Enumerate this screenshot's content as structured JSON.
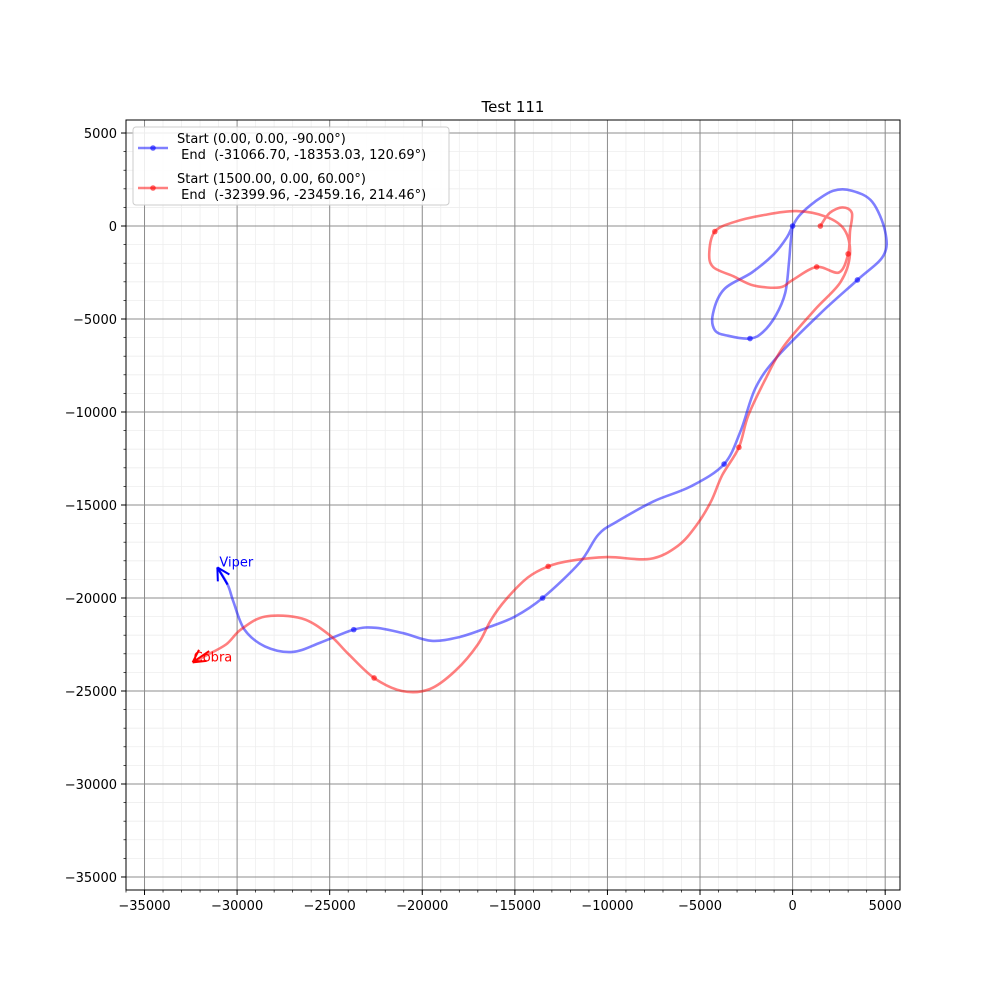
{
  "chart_data": {
    "type": "line",
    "title": "Test 111",
    "xlabel": "",
    "ylabel": "",
    "xlim": [
      -36000,
      5800
    ],
    "ylim": [
      -35700,
      5700
    ],
    "x_ticks": [
      -35000,
      -30000,
      -25000,
      -20000,
      -15000,
      -10000,
      -5000,
      0,
      5000
    ],
    "y_ticks": [
      -35000,
      -30000,
      -25000,
      -20000,
      -15000,
      -10000,
      -5000,
      0,
      5000
    ],
    "x_tick_labels": [
      "−35000",
      "−30000",
      "−25000",
      "−20000",
      "−15000",
      "−10000",
      "−5000",
      "0",
      "5000"
    ],
    "y_tick_labels": [
      "−35000",
      "−30000",
      "−25000",
      "−20000",
      "−15000",
      "−10000",
      "−5000",
      "0",
      "5000"
    ],
    "grid": true,
    "minor_grid": true,
    "minor_step": 1000,
    "legend_position": "top-left",
    "series": [
      {
        "legend": [
          "Start (0.00, 0.00, -90.00°)",
          " End  (-31066.70, -18353.03, 120.69°)"
        ],
        "color": "#0000ff",
        "annotation": "Viper",
        "end_heading_deg": 120.69,
        "points": [
          [
            0,
            0
          ],
          [
            -100,
            -800
          ],
          [
            -200,
            -2000
          ],
          [
            -400,
            -3600
          ],
          [
            -900,
            -4800
          ],
          [
            -1600,
            -5700
          ],
          [
            -2300,
            -6050
          ],
          [
            -3500,
            -5900
          ],
          [
            -4200,
            -5600
          ],
          [
            -4300,
            -4700
          ],
          [
            -3700,
            -3400
          ],
          [
            -2200,
            -2500
          ],
          [
            -1000,
            -1500
          ],
          [
            -300,
            -600
          ],
          [
            0,
            0
          ],
          [
            400,
            600
          ],
          [
            1200,
            1300
          ],
          [
            2200,
            1900
          ],
          [
            3200,
            1900
          ],
          [
            4300,
            1300
          ],
          [
            5000,
            -300
          ],
          [
            4900,
            -1600
          ],
          [
            3500,
            -2900
          ],
          [
            1500,
            -4700
          ],
          [
            -800,
            -7000
          ],
          [
            -2000,
            -8700
          ],
          [
            -2800,
            -11000
          ],
          [
            -3700,
            -12800
          ],
          [
            -5500,
            -14000
          ],
          [
            -7500,
            -14800
          ],
          [
            -9500,
            -15900
          ],
          [
            -10500,
            -16600
          ],
          [
            -11500,
            -18100
          ],
          [
            -13500,
            -20000
          ],
          [
            -15000,
            -21000
          ],
          [
            -16500,
            -21600
          ],
          [
            -18000,
            -22100
          ],
          [
            -19500,
            -22300
          ],
          [
            -21000,
            -21900
          ],
          [
            -22500,
            -21600
          ],
          [
            -23700,
            -21700
          ],
          [
            -25500,
            -22400
          ],
          [
            -27000,
            -22900
          ],
          [
            -28500,
            -22600
          ],
          [
            -29600,
            -21700
          ],
          [
            -30200,
            -20200
          ],
          [
            -30500,
            -19300
          ],
          [
            -31066.7,
            -18353.03
          ]
        ],
        "marker_points": [
          [
            0,
            0
          ],
          [
            -2300,
            -6050
          ],
          [
            3500,
            -2900
          ],
          [
            -3700,
            -12800
          ],
          [
            -13500,
            -20000
          ],
          [
            -23700,
            -21700
          ]
        ]
      },
      {
        "legend": [
          "Start (1500.00, 0.00, 60.00°)",
          " End  (-32399.96, -23459.16, 214.46°)"
        ],
        "color": "#ff0000",
        "annotation": "Cobra",
        "end_heading_deg": 214.46,
        "points": [
          [
            1500,
            0
          ],
          [
            2000,
            700
          ],
          [
            2700,
            1000
          ],
          [
            3200,
            700
          ],
          [
            3100,
            -300
          ],
          [
            3000,
            -1500
          ],
          [
            2500,
            -2500
          ],
          [
            1300,
            -2200
          ],
          [
            0,
            -2900
          ],
          [
            -700,
            -3300
          ],
          [
            -2100,
            -3200
          ],
          [
            -3200,
            -2700
          ],
          [
            -4300,
            -2200
          ],
          [
            -4500,
            -1400
          ],
          [
            -4200,
            -300
          ],
          [
            -3200,
            200
          ],
          [
            -1500,
            600
          ],
          [
            200,
            800
          ],
          [
            1800,
            500
          ],
          [
            2800,
            -200
          ],
          [
            3100,
            -1500
          ],
          [
            2600,
            -3000
          ],
          [
            1200,
            -4500
          ],
          [
            -500,
            -6500
          ],
          [
            -1500,
            -8300
          ],
          [
            -2400,
            -10200
          ],
          [
            -2900,
            -11900
          ],
          [
            -3800,
            -13400
          ],
          [
            -4400,
            -14800
          ],
          [
            -5200,
            -16100
          ],
          [
            -6200,
            -17200
          ],
          [
            -7700,
            -17900
          ],
          [
            -10000,
            -17800
          ],
          [
            -12000,
            -18000
          ],
          [
            -13200,
            -18300
          ],
          [
            -14300,
            -18900
          ],
          [
            -15500,
            -20100
          ],
          [
            -16300,
            -21200
          ],
          [
            -17000,
            -22500
          ],
          [
            -18200,
            -23900
          ],
          [
            -19600,
            -24900
          ],
          [
            -21100,
            -25000
          ],
          [
            -22600,
            -24300
          ],
          [
            -24000,
            -23000
          ],
          [
            -25000,
            -22000
          ],
          [
            -26500,
            -21100
          ],
          [
            -28500,
            -21000
          ],
          [
            -29800,
            -21700
          ],
          [
            -30600,
            -22500
          ],
          [
            -31700,
            -23100
          ],
          [
            -32399.96,
            -23459.16
          ]
        ],
        "marker_points": [
          [
            1500,
            0
          ],
          [
            3000,
            -1500
          ],
          [
            1300,
            -2200
          ],
          [
            -4200,
            -300
          ],
          [
            -2900,
            -11900
          ],
          [
            -13200,
            -18300
          ],
          [
            -22600,
            -24300
          ]
        ]
      }
    ]
  }
}
